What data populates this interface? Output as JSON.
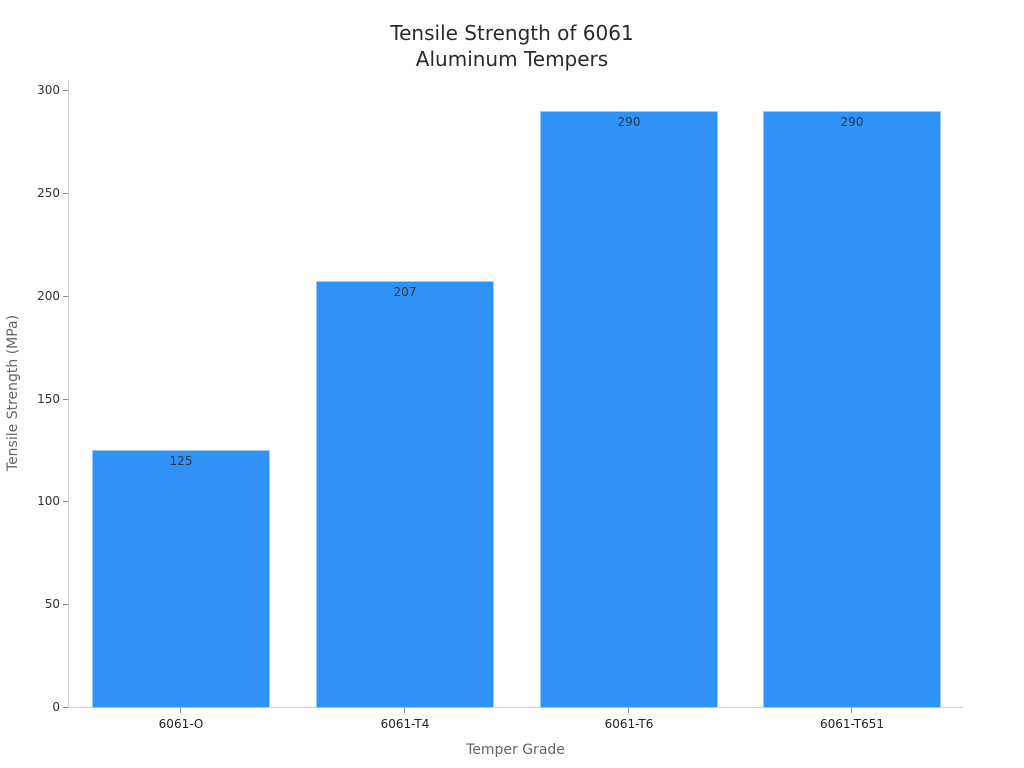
{
  "chart_data": {
    "type": "bar",
    "title": "Tensile Strength of 6061 Aluminum Tempers",
    "title_lines": [
      "Tensile Strength of 6061",
      "Aluminum Tempers"
    ],
    "xlabel": "Temper Grade",
    "ylabel": "Tensile Strength (MPa)",
    "categories": [
      "6061-O",
      "6061-T4",
      "6061-T6",
      "6061-T651"
    ],
    "values": [
      125,
      207,
      290,
      290
    ],
    "data_labels": [
      "125",
      "207",
      "290",
      "290"
    ],
    "ylim": [
      0,
      300
    ],
    "yticks": [
      "0",
      "50",
      "100",
      "150",
      "200",
      "250",
      "300"
    ],
    "grid": false,
    "legend": null,
    "bar_color": "#2f92f7"
  }
}
